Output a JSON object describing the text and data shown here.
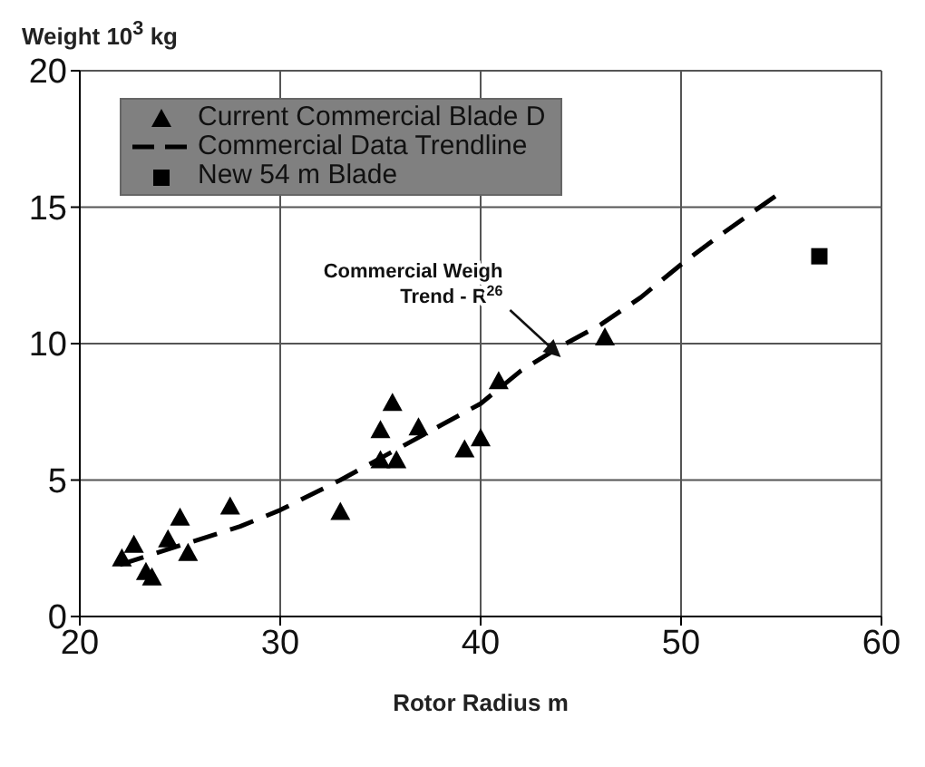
{
  "chart_data": {
    "type": "scatter",
    "ylabel": "Weight 10$^{3}$ kg",
    "xlabel": "Rotor Radius  m",
    "xlim": [
      20,
      60
    ],
    "xticks": [
      20,
      30,
      40,
      50,
      60
    ],
    "ylim": [
      0,
      20
    ],
    "yticks": [
      0,
      5,
      10,
      15,
      20
    ],
    "grid": true,
    "legend": "top left",
    "series": [
      {
        "name": "Current Commercial Blade D",
        "type": "scatter",
        "marker": "triangle",
        "color": "#000000",
        "x": [
          22.1,
          22.7,
          23.3,
          23.6,
          24.4,
          25.0,
          25.4,
          27.5,
          33.0,
          35.0,
          35.0,
          35.6,
          35.8,
          36.9,
          39.2,
          40.0,
          40.9,
          46.2
        ],
        "values": [
          2.1,
          2.6,
          1.6,
          1.4,
          2.8,
          3.6,
          2.3,
          4.0,
          3.8,
          6.8,
          5.7,
          7.8,
          5.7,
          6.9,
          6.1,
          6.5,
          8.6,
          10.2
        ]
      },
      {
        "name": "Commercial Data Trendline",
        "type": "line",
        "line_style": "dashed",
        "marker": "none",
        "color": "#000000",
        "x": [
          22,
          25,
          28,
          30,
          33,
          35,
          38,
          40,
          42,
          44,
          46,
          48,
          50,
          52,
          54.7
        ],
        "values": [
          1.9,
          2.6,
          3.3,
          3.9,
          5.0,
          5.8,
          7.0,
          7.8,
          9.0,
          9.9,
          10.7,
          11.7,
          12.9,
          14.0,
          15.4
        ]
      },
      {
        "name": "New 54 m Blade",
        "type": "scatter",
        "marker": "square",
        "color": "#000000",
        "x": [
          56.9
        ],
        "values": [
          13.2
        ]
      }
    ],
    "annotations": [
      {
        "text": "Commercial Weigh\nTrend - R$^{26}$",
        "x": 44,
        "y": 9.5
      }
    ]
  }
}
